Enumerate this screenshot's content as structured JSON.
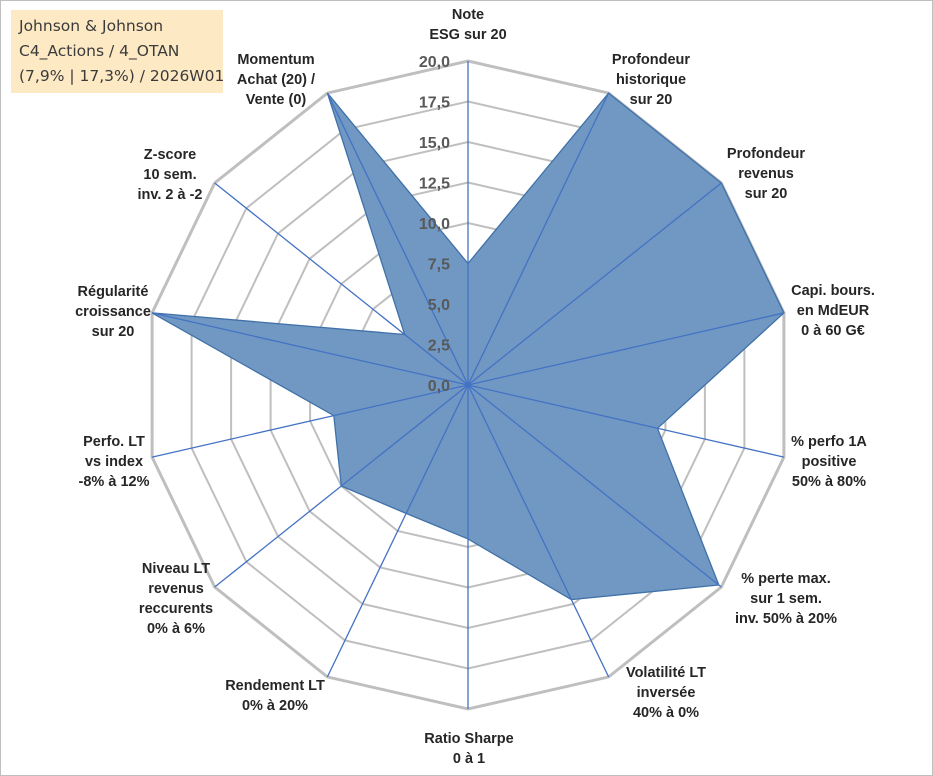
{
  "chart_data": {
    "type": "radar",
    "title_lines": [
      "Johnson & Johnson",
      "C4_Actions / 4_OTAN",
      "(7,9% | 17,3%) / 2026W01"
    ],
    "scale": {
      "min": 0,
      "max": 20,
      "step": 2.5
    },
    "tick_labels": [
      "0,0",
      "2,5",
      "5,0",
      "7,5",
      "10,0",
      "12,5",
      "15,0",
      "17,5",
      "20,0"
    ],
    "axes": [
      {
        "lines": [
          "Note",
          "ESG sur 20"
        ]
      },
      {
        "lines": [
          "Profondeur",
          "historique",
          "sur 20"
        ]
      },
      {
        "lines": [
          "Profondeur",
          "revenus",
          "sur 20"
        ]
      },
      {
        "lines": [
          "Capi. bours.",
          "en MdEUR",
          "0 à 60 G€"
        ]
      },
      {
        "lines": [
          "% perfo 1A",
          "positive",
          "50% à 80%"
        ]
      },
      {
        "lines": [
          "% perte max.",
          "sur 1 sem.",
          "inv. 50% à 20%"
        ]
      },
      {
        "lines": [
          "Volatilité LT",
          "inversée",
          "40% à 0%"
        ]
      },
      {
        "lines": [
          "Ratio Sharpe",
          "0 à 1"
        ]
      },
      {
        "lines": [
          "Rendement LT",
          "0% à 20%"
        ]
      },
      {
        "lines": [
          "Niveau LT",
          "revenus",
          "reccurents",
          "0% à 6%"
        ]
      },
      {
        "lines": [
          "Perfo. LT",
          "vs index",
          "-8% à 12%"
        ]
      },
      {
        "lines": [
          "Régularité",
          "croissance",
          "sur 20"
        ]
      },
      {
        "lines": [
          "Z-score",
          "10 sem.",
          "inv. 2 à -2"
        ]
      },
      {
        "lines": [
          "Momentum",
          "Achat (20) /",
          "Vente (0)"
        ]
      }
    ],
    "series": [
      {
        "name": "Johnson & Johnson",
        "values": [
          7.5,
          20,
          20,
          20,
          12,
          19.8,
          14.7,
          9.5,
          8.8,
          10,
          8.5,
          20,
          5,
          20
        ],
        "fill": "#7098c3",
        "stroke": "#3f71a8"
      }
    ],
    "colors": {
      "grid": "#bfbfbf",
      "spoke": "#4472c4"
    }
  }
}
